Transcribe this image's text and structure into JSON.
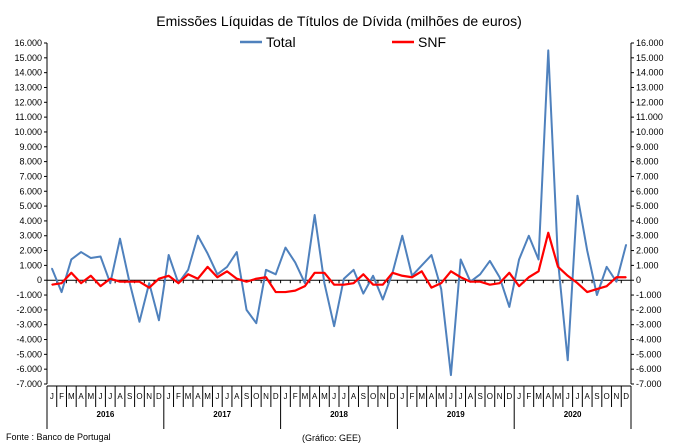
{
  "chart_data": {
    "type": "line",
    "title": "Emissões Líquidas de Títulos de Dívida (milhões de euros)",
    "ylim": [
      -7000,
      16000
    ],
    "yticks": [
      "-7.000",
      "-6.000",
      "-5.000",
      "-4.000",
      "-3.000",
      "-2.000",
      "-1.000",
      "0",
      "1.000",
      "2.000",
      "3.000",
      "4.000",
      "5.000",
      "6.000",
      "7.000",
      "8.000",
      "9.000",
      "10.000",
      "11.000",
      "12.000",
      "13.000",
      "14.000",
      "15.000",
      "16.000"
    ],
    "month_labels": [
      "J",
      "F",
      "M",
      "A",
      "M",
      "J",
      "J",
      "A",
      "S",
      "O",
      "N",
      "D"
    ],
    "years": [
      "2016",
      "2017",
      "2018",
      "2019",
      "2020"
    ],
    "legend_position": "top",
    "series": [
      {
        "name": "Total",
        "color": "#4F81BD",
        "values": [
          800,
          -800,
          1400,
          1900,
          1500,
          1600,
          -200,
          2800,
          -200,
          -2800,
          -200,
          -2700,
          1700,
          -200,
          700,
          3000,
          1800,
          400,
          900,
          1900,
          -2000,
          -2900,
          700,
          400,
          2200,
          1200,
          -200,
          4400,
          -200,
          -3100,
          100,
          700,
          -900,
          300,
          -1300,
          500,
          3000,
          300,
          1000,
          1700,
          -600,
          -6400,
          1400,
          -100,
          400,
          1300,
          200,
          -1800,
          1400,
          3000,
          1400,
          15500,
          1300,
          -5400,
          5700,
          2000,
          -1000,
          900,
          -100,
          2400
        ]
      },
      {
        "name": "SNF",
        "color": "#FF0000",
        "values": [
          -300,
          -200,
          500,
          -200,
          300,
          -400,
          100,
          -100,
          -100,
          -100,
          -500,
          100,
          300,
          -200,
          400,
          100,
          900,
          200,
          600,
          100,
          -100,
          100,
          200,
          -800,
          -800,
          -700,
          -400,
          500,
          500,
          -300,
          -300,
          -200,
          400,
          -300,
          -300,
          500,
          300,
          200,
          600,
          -500,
          -200,
          600,
          200,
          -100,
          -100,
          -300,
          -200,
          500,
          -400,
          200,
          600,
          3200,
          900,
          300,
          -200,
          -800,
          -600,
          -400,
          200,
          200
        ]
      }
    ]
  },
  "notes": {
    "source": "Fonte : Banco de Portugal",
    "credit": "(Gráfico: GEE)"
  }
}
